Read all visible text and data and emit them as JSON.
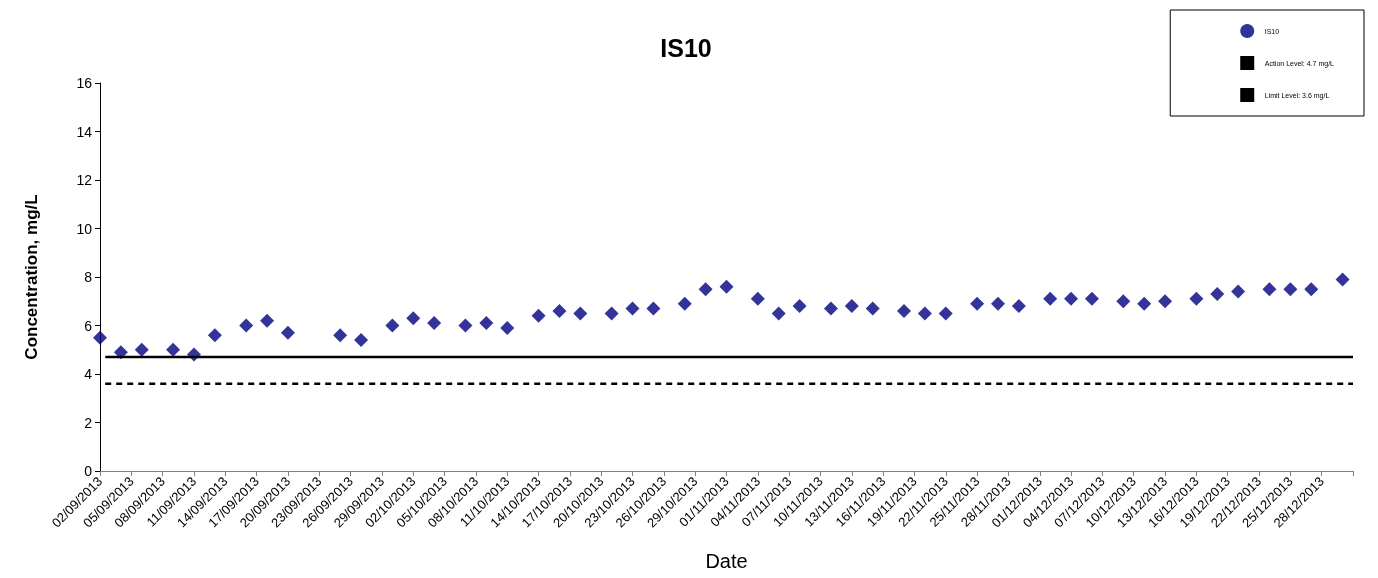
{
  "chart_data": {
    "type": "scatter",
    "title": "IS10",
    "xlabel": "Date",
    "ylabel": "Concentration, mg/L",
    "x": [
      "2013-09-02",
      "2013-09-04",
      "2013-09-06",
      "2013-09-09",
      "2013-09-11",
      "2013-09-13",
      "2013-09-16",
      "2013-09-18",
      "2013-09-20",
      "2013-09-25",
      "2013-09-27",
      "2013-09-30",
      "2013-10-02",
      "2013-10-04",
      "2013-10-07",
      "2013-10-09",
      "2013-10-11",
      "2013-10-14",
      "2013-10-16",
      "2013-10-18",
      "2013-10-21",
      "2013-10-23",
      "2013-10-25",
      "2013-10-28",
      "2013-10-30",
      "2013-11-01",
      "2013-11-04",
      "2013-11-06",
      "2013-11-08",
      "2013-11-11",
      "2013-11-13",
      "2013-11-15",
      "2013-11-18",
      "2013-11-20",
      "2013-11-22",
      "2013-11-25",
      "2013-11-27",
      "2013-11-29",
      "2013-12-02",
      "2013-12-04",
      "2013-12-06",
      "2013-12-09",
      "2013-12-11",
      "2013-12-13",
      "2013-12-16",
      "2013-12-18",
      "2013-12-20",
      "2013-12-23",
      "2013-12-25",
      "2013-12-27",
      "2013-12-30"
    ],
    "series": [
      {
        "name": "IS10",
        "color": "#000080",
        "values": [
          5.5,
          4.9,
          5.0,
          5.0,
          4.8,
          5.6,
          6.0,
          6.2,
          5.7,
          5.6,
          5.4,
          6.0,
          6.3,
          6.1,
          6.0,
          6.1,
          5.9,
          6.4,
          6.6,
          6.5,
          6.5,
          6.7,
          6.7,
          6.9,
          7.5,
          7.6,
          7.1,
          6.5,
          6.8,
          6.7,
          6.8,
          6.7,
          6.6,
          6.5,
          6.5,
          6.9,
          6.9,
          6.8,
          7.1,
          7.1,
          7.1,
          7.0,
          6.9,
          7.0,
          7.1,
          7.3,
          7.4,
          7.5,
          7.5,
          7.5,
          7.9
        ]
      }
    ],
    "marker": "diamond",
    "ref_lines": [
      {
        "axis": "y",
        "value": 4.7,
        "label": "Action Level: 4.7 mg/L",
        "color": "#000000",
        "line_style": "solid"
      },
      {
        "axis": "y",
        "value": 3.6,
        "label": "Limit Level: 3.6 mg/L",
        "color": "#000000",
        "line_style": "dashed"
      }
    ],
    "xlim": [
      "2013-09-02",
      "2013-12-31"
    ],
    "xticks": [
      {
        "value": "2013-09-02",
        "label": "02/09/2013"
      },
      {
        "value": "2013-09-05",
        "label": "05/09/2013"
      },
      {
        "value": "2013-09-08",
        "label": "08/09/2013"
      },
      {
        "value": "2013-09-11",
        "label": "11/09/2013"
      },
      {
        "value": "2013-09-14",
        "label": "14/09/2013"
      },
      {
        "value": "2013-09-17",
        "label": "17/09/2013"
      },
      {
        "value": "2013-09-20",
        "label": "20/09/2013"
      },
      {
        "value": "2013-09-23",
        "label": "23/09/2013"
      },
      {
        "value": "2013-09-26",
        "label": "26/09/2013"
      },
      {
        "value": "2013-09-29",
        "label": "29/09/2013"
      },
      {
        "value": "2013-10-02",
        "label": "02/10/2013"
      },
      {
        "value": "2013-10-05",
        "label": "05/10/2013"
      },
      {
        "value": "2013-10-08",
        "label": "08/10/2013"
      },
      {
        "value": "2013-10-11",
        "label": "11/10/2013"
      },
      {
        "value": "2013-10-14",
        "label": "14/10/2013"
      },
      {
        "value": "2013-10-17",
        "label": "17/10/2013"
      },
      {
        "value": "2013-10-20",
        "label": "20/10/2013"
      },
      {
        "value": "2013-10-23",
        "label": "23/10/2013"
      },
      {
        "value": "2013-10-26",
        "label": "26/10/2013"
      },
      {
        "value": "2013-10-29",
        "label": "29/10/2013"
      },
      {
        "value": "2013-11-01",
        "label": "01/11/2013"
      },
      {
        "value": "2013-11-04",
        "label": "04/11/2013"
      },
      {
        "value": "2013-11-07",
        "label": "07/11/2013"
      },
      {
        "value": "2013-11-10",
        "label": "10/11/2013"
      },
      {
        "value": "2013-11-13",
        "label": "13/11/2013"
      },
      {
        "value": "2013-11-16",
        "label": "16/11/2013"
      },
      {
        "value": "2013-11-19",
        "label": "19/11/2013"
      },
      {
        "value": "2013-11-22",
        "label": "22/11/2013"
      },
      {
        "value": "2013-11-25",
        "label": "25/11/2013"
      },
      {
        "value": "2013-11-28",
        "label": "28/11/2013"
      },
      {
        "value": "2013-12-01",
        "label": "01/12/2013"
      },
      {
        "value": "2013-12-04",
        "label": "04/12/2013"
      },
      {
        "value": "2013-12-07",
        "label": "07/12/2013"
      },
      {
        "value": "2013-12-10",
        "label": "10/12/2013"
      },
      {
        "value": "2013-12-13",
        "label": "13/12/2013"
      },
      {
        "value": "2013-12-16",
        "label": "16/12/2013"
      },
      {
        "value": "2013-12-19",
        "label": "19/12/2013"
      },
      {
        "value": "2013-12-22",
        "label": "22/12/2013"
      },
      {
        "value": "2013-12-25",
        "label": "25/12/2013"
      },
      {
        "value": "2013-12-28",
        "label": "28/12/2013"
      },
      {
        "value": "2013-12-31",
        "label": null
      }
    ],
    "ylim": [
      0,
      16
    ],
    "yticks": [
      0,
      2,
      4,
      6,
      8,
      10,
      12,
      14,
      16
    ],
    "grid": false,
    "legend": "top right"
  }
}
